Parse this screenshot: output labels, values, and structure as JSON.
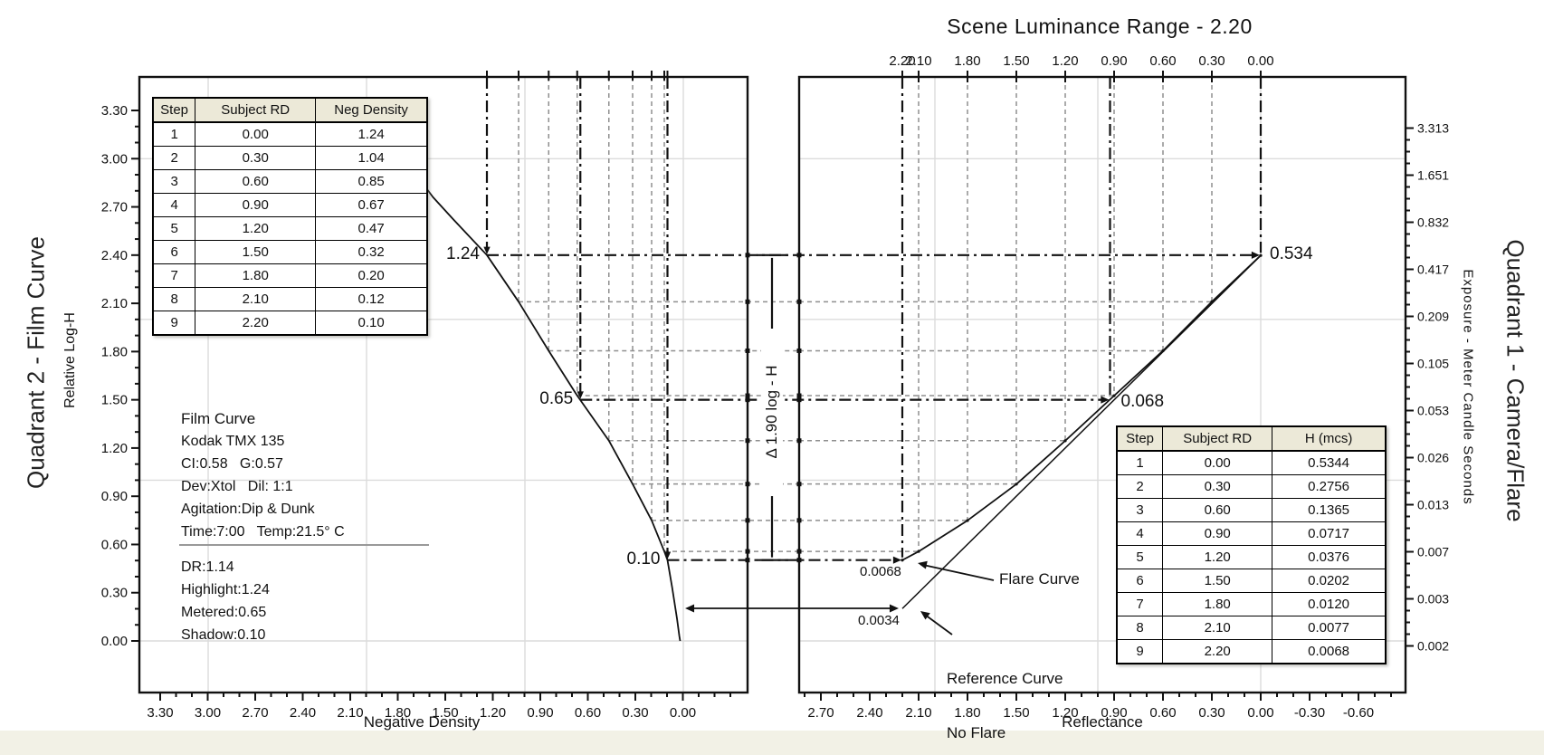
{
  "ui": {
    "title": "Scene Luminance Range - 2.20",
    "quadrant2_title": "Quadrant 2 - Film Curve",
    "quadrant1_title": "Quadrant 1 - Camera/Flare",
    "left_y_axis_title": "Relative Log-H",
    "left_x_axis_title": "Negative Density",
    "right_x_axis_title": "Reflectance",
    "right_y_axis_title": "Exposure - Meter Candle Seconds",
    "delta_label": "Δ 1.90 log - H",
    "flare_callout": "Flare Curve",
    "reference_callout_line1": "Reference Curve",
    "reference_callout_line2": "No Flare"
  },
  "chart_data": [
    {
      "type": "line",
      "name": "quadrant2-film-curve",
      "title": "Quadrant 2 - Film Curve",
      "xlabel": "Negative Density",
      "ylabel": "Relative Log-H",
      "x_tick_labels": [
        "3.30",
        "3.00",
        "2.70",
        "2.40",
        "2.10",
        "1.80",
        "1.50",
        "1.20",
        "0.90",
        "0.60",
        "0.30",
        "0.00"
      ],
      "y_tick_labels": [
        "3.30",
        "3.00",
        "2.70",
        "2.40",
        "2.10",
        "1.80",
        "1.50",
        "1.20",
        "0.90",
        "0.60",
        "0.30",
        "0.00"
      ],
      "xlim": [
        3.43,
        -0.41
      ],
      "ylim": [
        -0.32,
        3.51
      ],
      "grid": true,
      "series": [
        {
          "name": "film-curve",
          "points_density_logh": [
            [
              1.71,
              2.93
            ],
            [
              1.58,
              2.76
            ],
            [
              1.45,
              2.62
            ],
            [
              1.24,
              2.4
            ],
            [
              1.04,
              2.11
            ],
            [
              0.85,
              1.805
            ],
            [
              0.67,
              1.526
            ],
            [
              0.47,
              1.246
            ],
            [
              0.32,
              0.976
            ],
            [
              0.2,
              0.75
            ],
            [
              0.12,
              0.557
            ],
            [
              0.1,
              0.503
            ],
            [
              0.07,
              0.33
            ],
            [
              0.04,
              0.14
            ],
            [
              0.025,
              0.03
            ],
            [
              0.02,
              0.0
            ]
          ]
        }
      ],
      "step_guides": [
        {
          "step": 1,
          "density": 1.24,
          "log_h": 2.4,
          "emphasis": true
        },
        {
          "step": 2,
          "density": 1.04,
          "log_h": 2.11,
          "emphasis": false
        },
        {
          "step": 3,
          "density": 0.85,
          "log_h": 1.805,
          "emphasis": false
        },
        {
          "step": 4,
          "density": 0.67,
          "log_h": 1.526,
          "emphasis": false
        },
        {
          "step": 5,
          "density": 0.47,
          "log_h": 1.246,
          "emphasis": false
        },
        {
          "step": 6,
          "density": 0.32,
          "log_h": 0.976,
          "emphasis": false
        },
        {
          "step": 7,
          "density": 0.2,
          "log_h": 0.75,
          "emphasis": false
        },
        {
          "step": 8,
          "density": 0.12,
          "log_h": 0.557,
          "emphasis": false
        },
        {
          "step": 9,
          "density": 0.1,
          "log_h": 0.503,
          "emphasis": true
        }
      ],
      "key_points": [
        {
          "label": "1.24",
          "density": 1.24,
          "log_h": 2.4
        },
        {
          "label": "0.65",
          "density": 0.65,
          "log_h": 1.5
        },
        {
          "label": "0.10",
          "density": 0.1,
          "log_h": 0.503
        }
      ],
      "info_lines": [
        "Film Curve",
        "Kodak TMX 135",
        "CI:0.58   G:0.57",
        "Dev:Xtol   Dil: 1:1",
        "Agitation:Dip & Dunk",
        "Time:7:00   Temp:21.5° C",
        "DR:1.14",
        "Highlight:1.24",
        "Metered:0.65",
        "Shadow:0.10"
      ],
      "table": {
        "headers": [
          "Step",
          "Subject RD",
          "Neg Density"
        ],
        "rows": [
          [
            "1",
            "0.00",
            "1.24"
          ],
          [
            "2",
            "0.30",
            "1.04"
          ],
          [
            "3",
            "0.60",
            "0.85"
          ],
          [
            "4",
            "0.90",
            "0.67"
          ],
          [
            "5",
            "1.20",
            "0.47"
          ],
          [
            "6",
            "1.50",
            "0.32"
          ],
          [
            "7",
            "1.80",
            "0.20"
          ],
          [
            "8",
            "2.10",
            "0.12"
          ],
          [
            "9",
            "2.20",
            "0.10"
          ]
        ]
      }
    },
    {
      "type": "line",
      "name": "quadrant1-camera-flare",
      "title": "Quadrant 1 - Camera/Flare",
      "xlabel": "Reflectance",
      "ylabel": "Exposure - Meter Candle Seconds",
      "top_axis_tick_labels": [
        "2.20",
        "2.10",
        "1.80",
        "1.50",
        "1.20",
        "0.90",
        "0.60",
        "0.30",
        "0.00"
      ],
      "top_axis_tick_values": [
        2.2,
        2.1,
        1.8,
        1.5,
        1.2,
        0.9,
        0.6,
        0.3,
        0.0
      ],
      "x_tick_labels": [
        "2.70",
        "2.40",
        "2.10",
        "1.80",
        "1.50",
        "1.20",
        "0.90",
        "0.60",
        "0.30",
        "0.00",
        "-0.30",
        "-0.60"
      ],
      "right_y_tick_labels": [
        "3.313",
        "1.651",
        "0.832",
        "0.417",
        "0.209",
        "0.105",
        "0.053",
        "0.026",
        "0.013",
        "0.007",
        "0.003",
        "0.002"
      ],
      "grid": true,
      "series": [
        {
          "name": "flare-curve",
          "points_reflectance_h": [
            [
              0.0,
              0.5344
            ],
            [
              0.3,
              0.2756
            ],
            [
              0.6,
              0.1365
            ],
            [
              0.9,
              0.0717
            ],
            [
              1.2,
              0.0376
            ],
            [
              1.5,
              0.0202
            ],
            [
              1.8,
              0.012
            ],
            [
              2.1,
              0.0077
            ],
            [
              2.2,
              0.0068
            ]
          ]
        },
        {
          "name": "reference-curve-no-flare",
          "points_reflectance_h": [
            [
              0.0,
              0.5344
            ],
            [
              2.2,
              0.0034
            ]
          ]
        }
      ],
      "key_points": [
        {
          "label": "0.534",
          "reflectance": 0.0,
          "h": 0.5344
        },
        {
          "label": "0.068",
          "reflectance": 0.925,
          "h": 0.068
        },
        {
          "label": "0.0068",
          "reflectance": 2.2,
          "h": 0.0068
        }
      ],
      "annotations": [
        {
          "label": "0.0068"
        },
        {
          "label": "0.0034"
        }
      ],
      "table": {
        "headers": [
          "Step",
          "Subject RD",
          "H (mcs)"
        ],
        "rows": [
          [
            "1",
            "0.00",
            "0.5344"
          ],
          [
            "2",
            "0.30",
            "0.2756"
          ],
          [
            "3",
            "0.60",
            "0.1365"
          ],
          [
            "4",
            "0.90",
            "0.0717"
          ],
          [
            "5",
            "1.20",
            "0.0376"
          ],
          [
            "6",
            "1.50",
            "0.0202"
          ],
          [
            "7",
            "1.80",
            "0.0120"
          ],
          [
            "8",
            "2.10",
            "0.0077"
          ],
          [
            "9",
            "2.20",
            "0.0068"
          ]
        ]
      }
    }
  ]
}
